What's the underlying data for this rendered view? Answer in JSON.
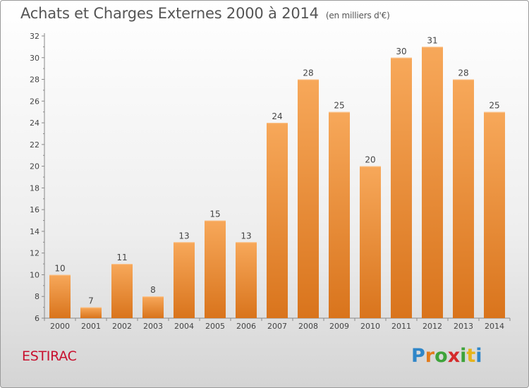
{
  "header": {
    "title": "Achats et Charges Externes 2000 à 2014",
    "subtitle": "(en milliers d'€)"
  },
  "footer": {
    "commune": "ESTIRAC",
    "brand": "Proxiti",
    "brand_letters": [
      "P",
      "r",
      "o",
      "x",
      "i",
      "t",
      "i"
    ]
  },
  "colors": {
    "bar_light": "#f7a85a",
    "bar_dark": "#d9741c",
    "commune": "#c8102e"
  },
  "chart_data": {
    "type": "bar",
    "title": "Achats et Charges Externes 2000 à 2014",
    "subtitle": "(en milliers d'€)",
    "xlabel": "",
    "ylabel": "",
    "categories": [
      "2000",
      "2001",
      "2002",
      "2003",
      "2004",
      "2005",
      "2006",
      "2007",
      "2008",
      "2009",
      "2010",
      "2011",
      "2012",
      "2013",
      "2014"
    ],
    "values": [
      10,
      7,
      11,
      8,
      13,
      15,
      13,
      24,
      28,
      25,
      20,
      30,
      31,
      28,
      25
    ],
    "ylim": [
      6,
      32
    ],
    "yticks": [
      6,
      8,
      10,
      12,
      14,
      16,
      18,
      20,
      22,
      24,
      26,
      28,
      30,
      32
    ],
    "grid": false,
    "legend": "none"
  }
}
